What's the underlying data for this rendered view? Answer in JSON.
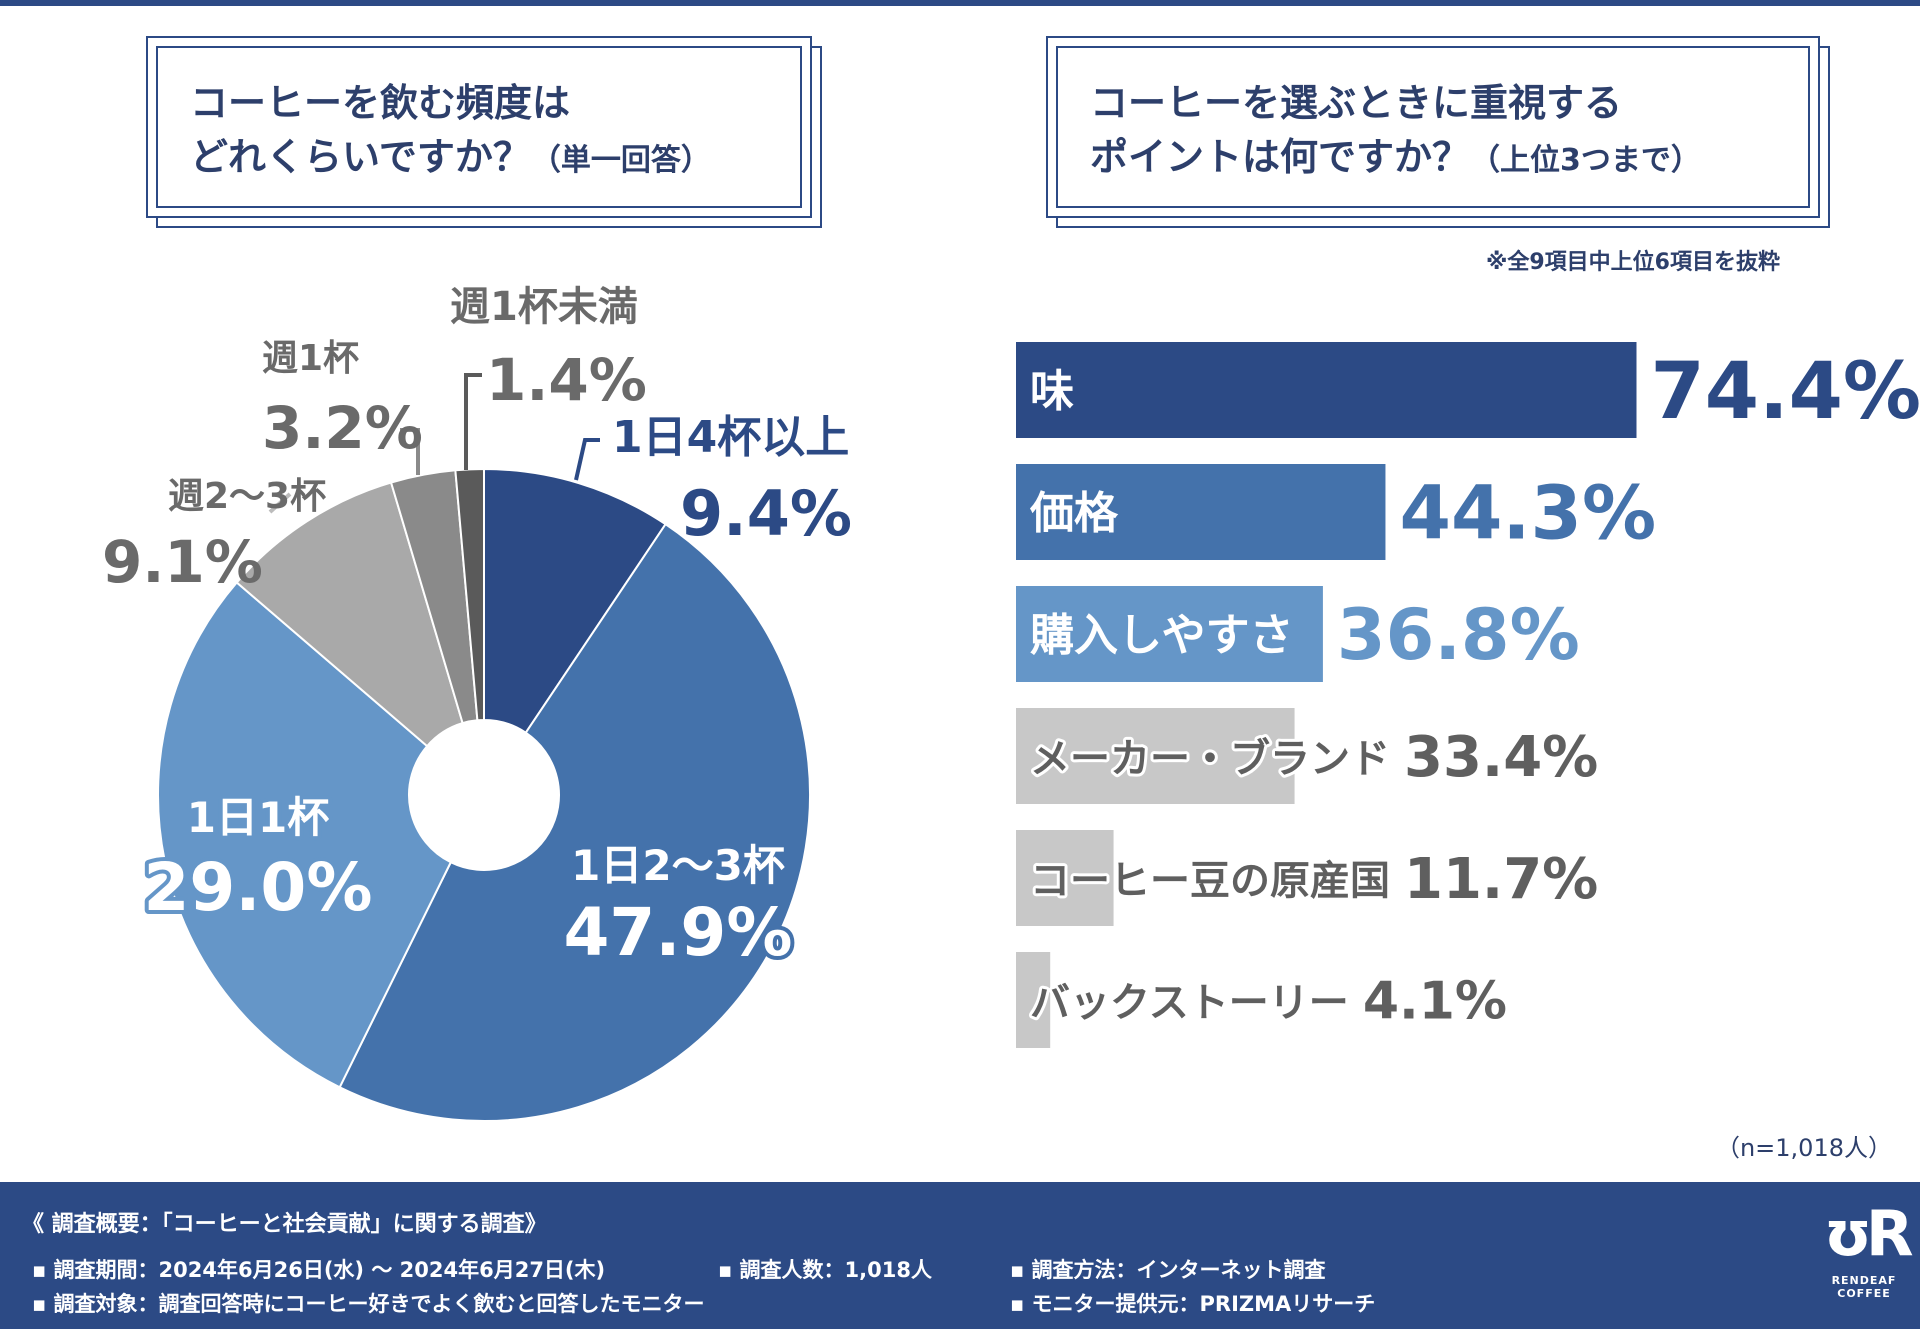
{
  "left_question": {
    "line1": "コーヒーを飲む頻度は",
    "line2": "どれくらいですか？",
    "suffix": "（単一回答）"
  },
  "right_question": {
    "line1": "コーヒーを選ぶときに重視する",
    "line2": "ポイントは何ですか？",
    "suffix": "（上位3つまで）"
  },
  "right_note": "※全9項目中上位6項目を抜粋",
  "sample_size": "（n=1,018人）",
  "chart_data": [
    {
      "type": "pie",
      "title": "コーヒーを飲む頻度はどれくらいですか？（単一回答）",
      "categories": [
        "1日4杯以上",
        "1日2〜3杯",
        "1日1杯",
        "週2〜3杯",
        "週1杯",
        "週1杯未満"
      ],
      "values": [
        9.4,
        47.9,
        29.0,
        9.1,
        3.2,
        1.4
      ],
      "labels": [
        "9.4%",
        "47.9%",
        "29.0%",
        "9.1%",
        "3.2%",
        "1.4%"
      ],
      "colors": [
        "#2c4a85",
        "#4472ab",
        "#6596c8",
        "#a9a9a9",
        "#8a8a8a",
        "#5a5a5a"
      ]
    },
    {
      "type": "bar",
      "orientation": "horizontal",
      "title": "コーヒーを選ぶときに重視するポイントは何ですか？（上位3つまで）",
      "categories": [
        "味",
        "価格",
        "購入しやすさ",
        "メーカー・ブランド",
        "コーヒー豆の原産国",
        "バックストーリー"
      ],
      "values": [
        74.4,
        44.3,
        36.8,
        33.4,
        11.7,
        4.1
      ],
      "labels": [
        "74.4%",
        "44.3%",
        "36.8%",
        "33.4%",
        "11.7%",
        "4.1%"
      ],
      "colors": [
        "#2c4a85",
        "#4472ab",
        "#6596c8",
        "#c8c8c8",
        "#c8c8c8",
        "#c8c8c8"
      ],
      "value_colors": [
        "#2c4a85",
        "#4472ab",
        "#6596c8",
        "#5f5f5f",
        "#5f5f5f",
        "#5f5f5f"
      ],
      "xlim": [
        0,
        100
      ]
    }
  ],
  "footer": {
    "title": "《 調査概要：「コーヒーと社会貢献」に関する調査》",
    "period": "調査期間：2024年6月26日(水) 〜 2024年6月27日(木)",
    "count": "調査人数：1,018人",
    "method": "調査方法：インターネット調査",
    "target": "調査対象：調査回答時にコーヒー好きでよく飲むと回答したモニター",
    "provider": "モニター提供元：PRIZMAリサーチ",
    "logo_text": "RENDEAF COFFEE"
  }
}
